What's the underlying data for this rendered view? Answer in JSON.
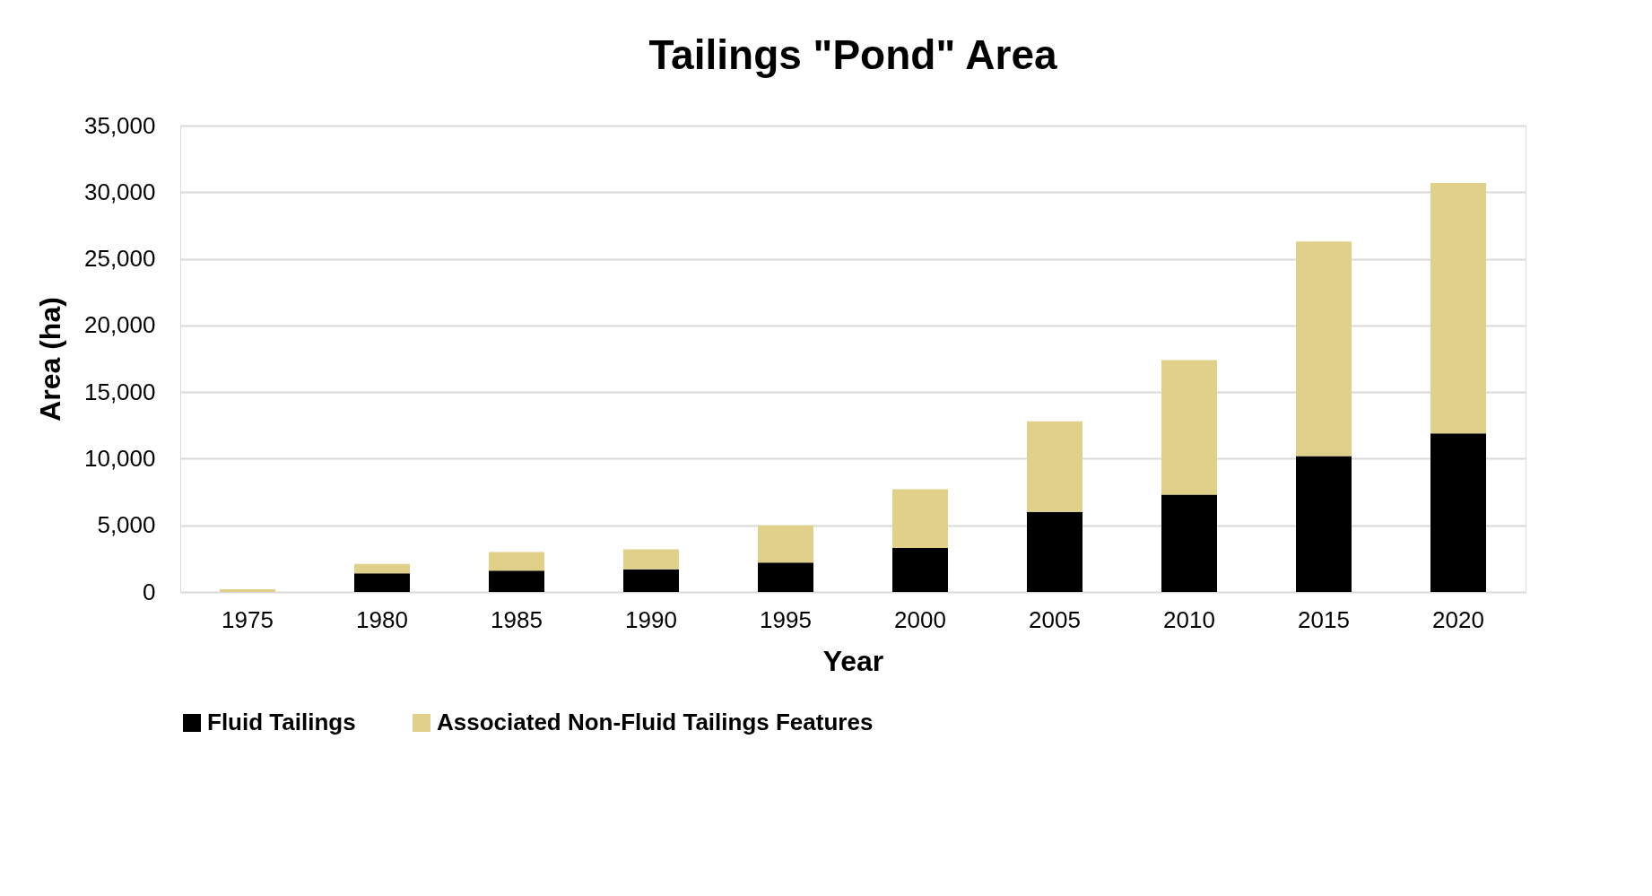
{
  "chart_data": {
    "type": "bar",
    "stacked": true,
    "title": "Tailings \"Pond\" Area",
    "xlabel": "Year",
    "ylabel": "Area (ha)",
    "categories": [
      "1975",
      "1980",
      "1985",
      "1990",
      "1995",
      "2000",
      "2005",
      "2010",
      "2015",
      "2020"
    ],
    "series": [
      {
        "name": "Fluid Tailings",
        "color": "#000000",
        "values": [
          0,
          1400,
          1600,
          1700,
          2200,
          3300,
          6000,
          7300,
          10200,
          11900
        ]
      },
      {
        "name": "Associated Non-Fluid Tailings Features",
        "color": "#e0d08a",
        "values": [
          200,
          700,
          1400,
          1500,
          2800,
          4400,
          6800,
          10100,
          16100,
          18800
        ]
      }
    ],
    "ylim": [
      0,
      35000
    ],
    "yticks": [
      {
        "value": 0,
        "label": "0"
      },
      {
        "value": 5000,
        "label": "5,000"
      },
      {
        "value": 10000,
        "label": "10,000"
      },
      {
        "value": 15000,
        "label": "15,000"
      },
      {
        "value": 20000,
        "label": "20,000"
      },
      {
        "value": 25000,
        "label": "25,000"
      },
      {
        "value": 30000,
        "label": "30,000"
      },
      {
        "value": 35000,
        "label": "35,000"
      }
    ],
    "grid": "y",
    "legend": "bottom"
  }
}
